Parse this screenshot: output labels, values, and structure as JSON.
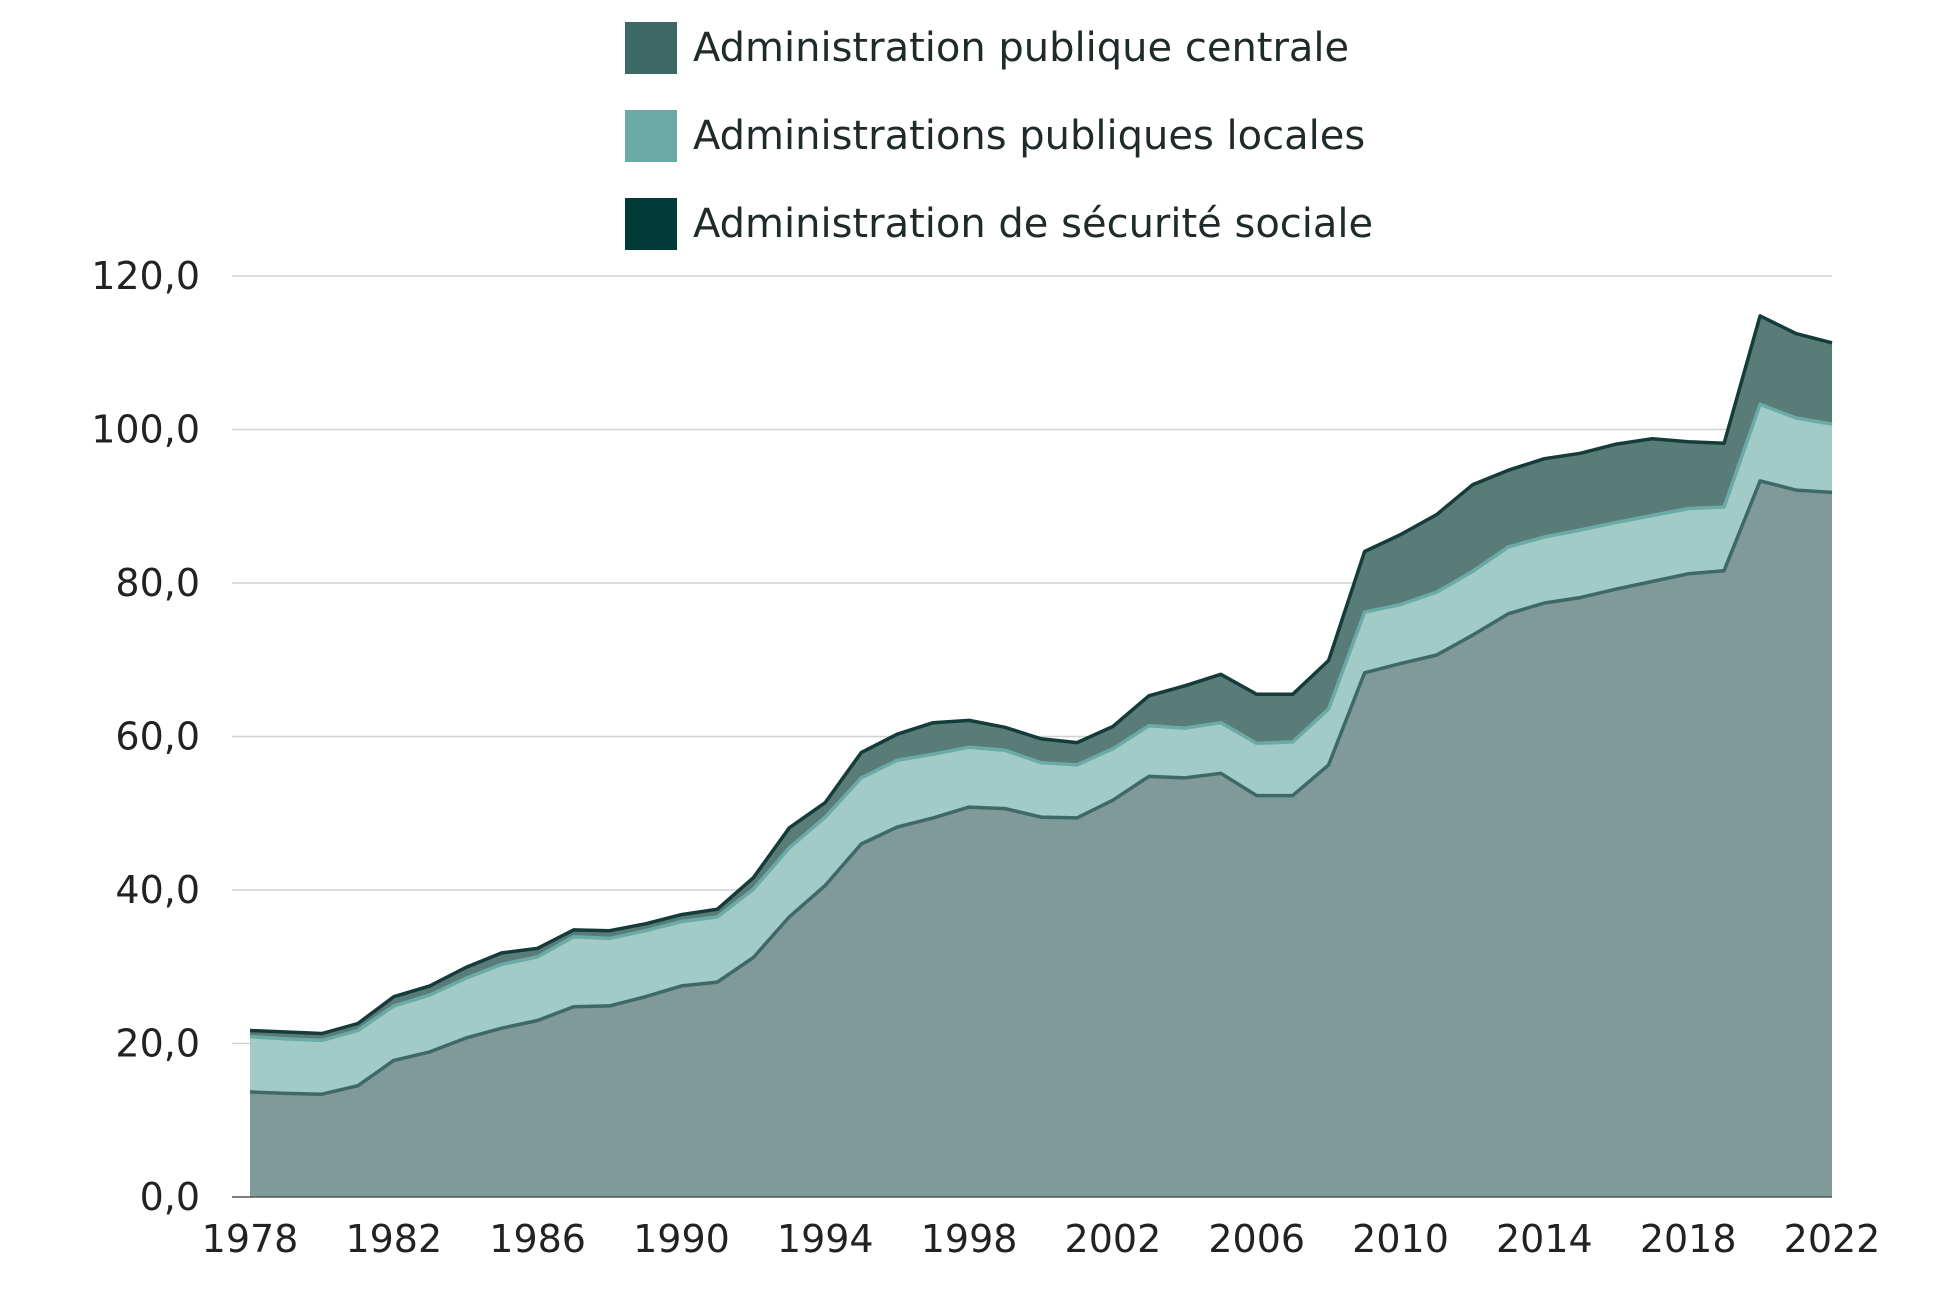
{
  "chart_data": {
    "type": "area",
    "stacked": true,
    "title": "",
    "xlabel": "",
    "ylabel": "",
    "ylim": [
      0,
      120
    ],
    "yticks": [
      "0,0",
      "20,0",
      "40,0",
      "60,0",
      "80,0",
      "100,0",
      "120,0"
    ],
    "ytick_values": [
      0,
      20,
      40,
      60,
      80,
      100,
      120
    ],
    "xticks": [
      "1978",
      "1982",
      "1986",
      "1990",
      "1994",
      "1998",
      "2002",
      "2006",
      "2010",
      "2014",
      "2018",
      "2022"
    ],
    "xtick_values": [
      1978,
      1982,
      1986,
      1990,
      1994,
      1998,
      2002,
      2006,
      2010,
      2014,
      2018,
      2022
    ],
    "x": [
      1978,
      1979,
      1980,
      1981,
      1982,
      1983,
      1984,
      1985,
      1986,
      1987,
      1988,
      1989,
      1990,
      1991,
      1992,
      1993,
      1994,
      1995,
      1996,
      1997,
      1998,
      1999,
      2000,
      2001,
      2002,
      2003,
      2004,
      2005,
      2006,
      2007,
      2008,
      2009,
      2010,
      2011,
      2012,
      2013,
      2014,
      2015,
      2016,
      2017,
      2018,
      2019,
      2020,
      2021,
      2022
    ],
    "legend_position": "top-center",
    "grid": true,
    "series": [
      {
        "name": "Administration publique centrale",
        "color": "#3f6966",
        "values": [
          13.7,
          13.5,
          13.4,
          14.5,
          17.8,
          18.9,
          20.7,
          22.0,
          23.0,
          24.8,
          24.9,
          26.1,
          27.5,
          28.0,
          31.2,
          36.5,
          40.6,
          46.0,
          48.2,
          49.4,
          50.8,
          50.6,
          49.5,
          49.4,
          51.7,
          54.8,
          54.6,
          55.2,
          52.3,
          52.3,
          56.3,
          68.3,
          69.5,
          70.6,
          73.2,
          76.0,
          77.4,
          78.1,
          79.2,
          80.2,
          81.2,
          81.6,
          93.3,
          92.1,
          91.8
        ]
      },
      {
        "name": "Administrations publiques locales",
        "color": "#6aaba7",
        "values": [
          7.2,
          7.1,
          7.0,
          7.2,
          7.1,
          7.4,
          7.8,
          8.3,
          8.3,
          9.1,
          8.8,
          8.6,
          8.4,
          8.5,
          8.9,
          9.0,
          8.9,
          8.6,
          8.7,
          8.3,
          7.8,
          7.6,
          7.1,
          6.9,
          6.7,
          6.6,
          6.5,
          6.6,
          6.8,
          7.0,
          7.3,
          7.9,
          7.7,
          8.2,
          8.3,
          8.7,
          8.6,
          8.8,
          8.7,
          8.6,
          8.5,
          8.3,
          10.0,
          9.4,
          8.9
        ]
      },
      {
        "name": "Administration de sécurité sociale",
        "color": "#003a38",
        "values": [
          0.8,
          0.9,
          0.9,
          0.9,
          1.2,
          1.2,
          1.4,
          1.5,
          1.1,
          0.9,
          1.0,
          0.9,
          0.9,
          1.0,
          1.5,
          2.6,
          1.9,
          3.3,
          3.4,
          4.1,
          3.5,
          3.0,
          3.1,
          2.9,
          2.9,
          3.9,
          5.5,
          6.3,
          6.4,
          6.2,
          6.3,
          7.9,
          9.1,
          10.1,
          11.3,
          10.0,
          10.2,
          10.0,
          10.2,
          10.0,
          8.7,
          8.3,
          11.5,
          11.0,
          10.6
        ]
      }
    ]
  }
}
